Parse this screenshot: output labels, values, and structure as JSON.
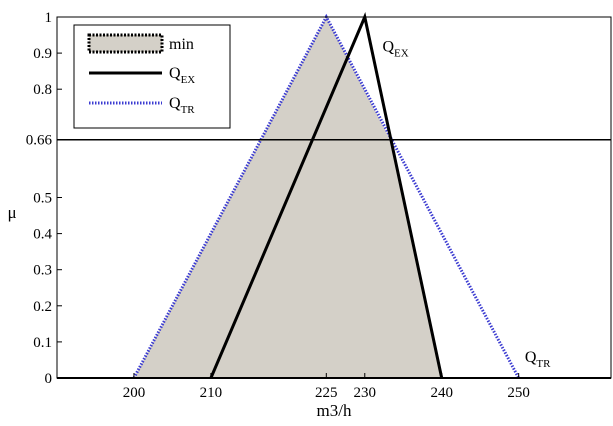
{
  "chart_data": {
    "type": "line",
    "xlabel": "m3/h",
    "ylabel": "μ",
    "xlim": [
      190,
      262
    ],
    "ylim": [
      0,
      1
    ],
    "x_ticks": [
      200,
      210,
      225,
      230,
      240,
      250
    ],
    "y_ticks": [
      0,
      0.1,
      0.2,
      0.3,
      0.4,
      0.5,
      0.66,
      0.8,
      0.9,
      1
    ],
    "y_tick_labels": [
      "0",
      "0.1",
      "0.2",
      "0.3",
      "0.4",
      "0.5",
      "0.66",
      "0.8",
      "0.9",
      "1"
    ],
    "grid": false,
    "legend_position": "top-left",
    "series": [
      {
        "name": "min",
        "style": "filled-area",
        "fill": "#d4d0c8",
        "stroke": "#000000",
        "x": [
          200,
          225,
          233.3,
          240
        ],
        "y": [
          0,
          1,
          0.66,
          0
        ]
      },
      {
        "name": "Q",
        "name_sub": "EX",
        "style": "solid",
        "color": "#000000",
        "x": [
          210,
          230,
          240
        ],
        "y": [
          0,
          1,
          0
        ]
      },
      {
        "name": "Q",
        "name_sub": "TR",
        "style": "dotted",
        "color": "#3b3bd1",
        "x": [
          200,
          225,
          250
        ],
        "y": [
          0,
          1,
          0
        ]
      }
    ],
    "hline": {
      "y": 0.66,
      "color": "#000000"
    },
    "annotations": [
      {
        "text": "Q",
        "sub": "EX",
        "x": 232.3,
        "y": 0.905
      },
      {
        "text": "Q",
        "sub": "TR",
        "x": 250.8,
        "y": 0.045
      }
    ]
  }
}
